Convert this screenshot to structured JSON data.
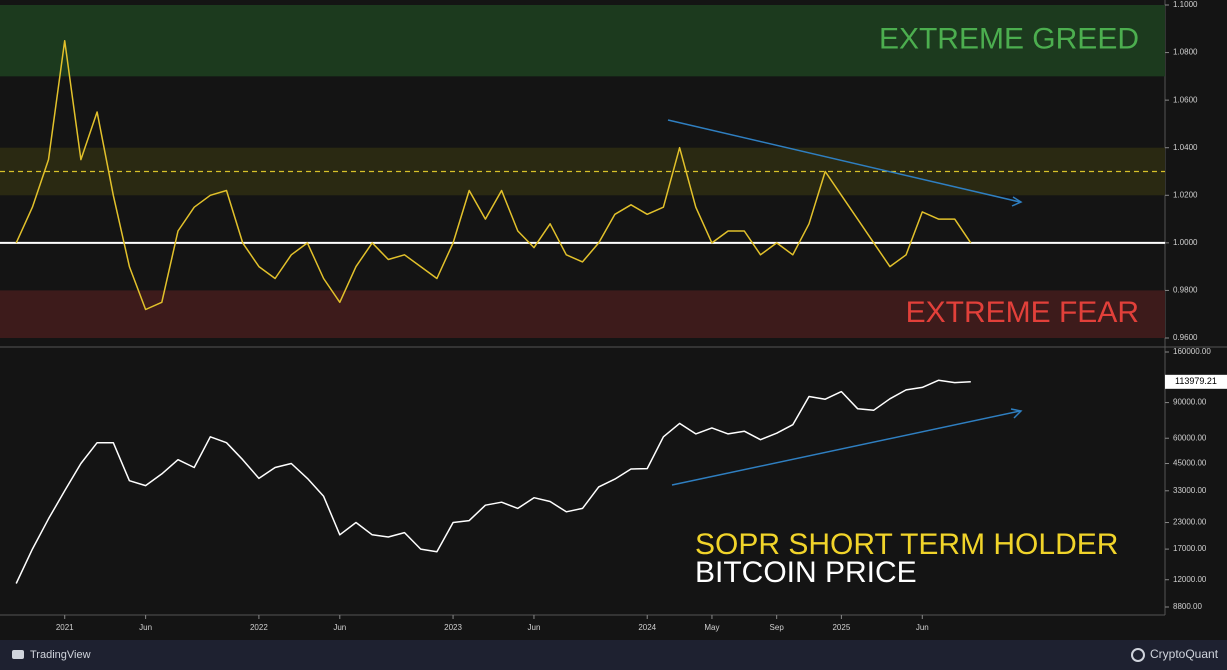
{
  "chart_data": [
    {
      "type": "line",
      "x": [
        "2020-10",
        "2020-11",
        "2020-12",
        "2021-01",
        "2021-02",
        "2021-03",
        "2021-04",
        "2021-05",
        "2021-06",
        "2021-07",
        "2021-08",
        "2021-09",
        "2021-10",
        "2021-11",
        "2021-12",
        "2022-01",
        "2022-02",
        "2022-03",
        "2022-04",
        "2022-05",
        "2022-06",
        "2022-07",
        "2022-08",
        "2022-09",
        "2022-10",
        "2022-11",
        "2022-12",
        "2023-01",
        "2023-02",
        "2023-03",
        "2023-04",
        "2023-05",
        "2023-06",
        "2023-07",
        "2023-08",
        "2023-09",
        "2023-10",
        "2023-11",
        "2023-12",
        "2024-01",
        "2024-02",
        "2024-03",
        "2024-04",
        "2024-05",
        "2024-06",
        "2024-07",
        "2024-08",
        "2024-09",
        "2024-10",
        "2024-11",
        "2024-12",
        "2025-01",
        "2025-02",
        "2025-03",
        "2025-04",
        "2025-05",
        "2025-06",
        "2025-07",
        "2025-08",
        "2025-09"
      ],
      "series": [
        {
          "name": "SOPR SHORT TERM HOLDER",
          "color": "#e2c12b",
          "values": [
            1.0,
            1.015,
            1.035,
            1.085,
            1.035,
            1.055,
            1.02,
            0.99,
            0.972,
            0.975,
            1.005,
            1.015,
            1.02,
            1.022,
            1.0,
            0.99,
            0.985,
            0.995,
            1.0,
            0.985,
            0.975,
            0.99,
            1.0,
            0.993,
            0.995,
            0.99,
            0.985,
            1.0,
            1.022,
            1.01,
            1.022,
            1.005,
            0.998,
            1.008,
            0.995,
            0.992,
            1.0,
            1.012,
            1.016,
            1.012,
            1.015,
            1.04,
            1.015,
            1.0,
            1.005,
            1.005,
            0.995,
            1.0,
            0.995,
            1.008,
            1.03,
            1.02,
            1.01,
            1.0,
            0.99,
            0.995,
            1.013,
            1.01,
            1.01,
            1.0
          ]
        }
      ],
      "xlim": [
        "2020-09",
        "2026-09"
      ],
      "ylim": [
        0.96,
        1.1
      ],
      "yticks": [
        {
          "value": 0.96,
          "label": "0.9600"
        },
        {
          "value": 0.98,
          "label": "0.9800"
        },
        {
          "value": 1.0,
          "label": "1.0000"
        },
        {
          "value": 1.02,
          "label": "1.0200"
        },
        {
          "value": 1.04,
          "label": "1.0400"
        },
        {
          "value": 1.06,
          "label": "1.0600"
        },
        {
          "value": 1.08,
          "label": "1.0800"
        },
        {
          "value": 1.1,
          "label": "1.1000"
        }
      ],
      "bands": [
        {
          "from": 1.07,
          "to": 1.1,
          "color": "#1c3a1e",
          "label": "EXTREME GREED",
          "label_color": "#4cae4f"
        },
        {
          "from": 1.02,
          "to": 1.04,
          "color": "#2a2912"
        },
        {
          "from": 0.96,
          "to": 0.98,
          "color": "#3d1b1b",
          "label": "EXTREME FEAR",
          "label_color": "#e2403a"
        }
      ],
      "hlines": [
        {
          "value": 1.0,
          "color": "#ffffff",
          "dashed": false
        },
        {
          "value": 1.03,
          "color": "#d8c12a",
          "dashed": true
        }
      ]
    },
    {
      "type": "line",
      "log_scale": true,
      "x": [
        "2020-10",
        "2020-11",
        "2020-12",
        "2021-01",
        "2021-02",
        "2021-03",
        "2021-04",
        "2021-05",
        "2021-06",
        "2021-07",
        "2021-08",
        "2021-09",
        "2021-10",
        "2021-11",
        "2021-12",
        "2022-01",
        "2022-02",
        "2022-03",
        "2022-04",
        "2022-05",
        "2022-06",
        "2022-07",
        "2022-08",
        "2022-09",
        "2022-10",
        "2022-11",
        "2022-12",
        "2023-01",
        "2023-02",
        "2023-03",
        "2023-04",
        "2023-05",
        "2023-06",
        "2023-07",
        "2023-08",
        "2023-09",
        "2023-10",
        "2023-11",
        "2023-12",
        "2024-01",
        "2024-02",
        "2024-03",
        "2024-04",
        "2024-05",
        "2024-06",
        "2024-07",
        "2024-08",
        "2024-09",
        "2024-10",
        "2024-11",
        "2024-12",
        "2025-01",
        "2025-02",
        "2025-03",
        "2025-04",
        "2025-05",
        "2025-06",
        "2025-07",
        "2025-08",
        "2025-09"
      ],
      "series": [
        {
          "name": "BITCOIN PRICE",
          "color": "#ffffff",
          "values": [
            11500,
            17000,
            24000,
            33000,
            45000,
            57000,
            57000,
            37000,
            35000,
            40000,
            47000,
            43000,
            61000,
            57000,
            47000,
            38000,
            43000,
            45000,
            38000,
            31000,
            20000,
            23000,
            20000,
            19500,
            20500,
            17000,
            16500,
            23000,
            23500,
            28000,
            29000,
            27000,
            30500,
            29200,
            26000,
            27000,
            34500,
            37700,
            42300,
            42500,
            61000,
            71000,
            63000,
            67500,
            63000,
            65000,
            59000,
            63500,
            70000,
            96500,
            93500,
            102000,
            84000,
            82500,
            94000,
            104000,
            107000,
            116000,
            113000,
            114000
          ]
        }
      ],
      "last_price": 113979.21,
      "xlim": [
        "2020-09",
        "2026-09"
      ],
      "ylim": [
        8800,
        160000
      ],
      "yticks": [
        {
          "value": 8800,
          "label": "8800.00"
        },
        {
          "value": 12000,
          "label": "12000.00"
        },
        {
          "value": 17000,
          "label": "17000.00"
        },
        {
          "value": 23000,
          "label": "23000.00"
        },
        {
          "value": 33000,
          "label": "33000.00"
        },
        {
          "value": 45000,
          "label": "45000.00"
        },
        {
          "value": 60000,
          "label": "60000.00"
        },
        {
          "value": 90000,
          "label": "90000.00"
        },
        {
          "value": 160000,
          "label": "160000.00"
        }
      ],
      "xticks": [
        {
          "value": "2021-01",
          "label": "2021"
        },
        {
          "value": "2021-06",
          "label": "Jun"
        },
        {
          "value": "2022-01",
          "label": "2022"
        },
        {
          "value": "2022-06",
          "label": "Jun"
        },
        {
          "value": "2023-01",
          "label": "2023"
        },
        {
          "value": "2023-06",
          "label": "Jun"
        },
        {
          "value": "2024-01",
          "label": "2024"
        },
        {
          "value": "2024-05",
          "label": "May"
        },
        {
          "value": "2024-09",
          "label": "Sep"
        },
        {
          "value": "2025-01",
          "label": "2025"
        },
        {
          "value": "2025-06",
          "label": "Jun"
        }
      ]
    }
  ],
  "footer": {
    "left": "TradingView",
    "right": "CryptoQuant"
  }
}
